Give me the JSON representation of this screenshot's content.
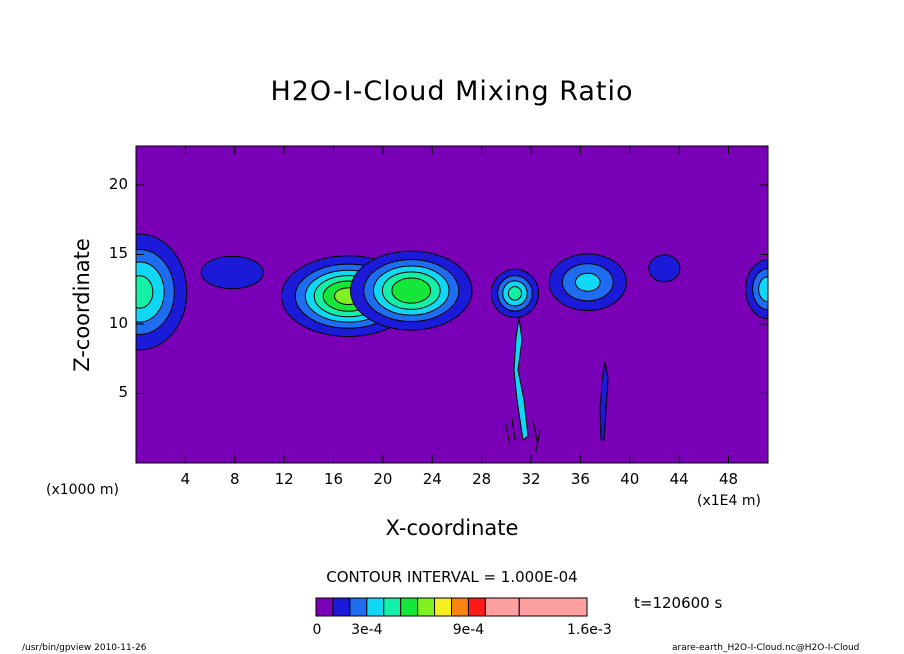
{
  "chart_data": {
    "type": "contour",
    "title": "H2O-I-Cloud Mixing Ratio",
    "xlabel": "X-coordinate",
    "ylabel": "Z-coordinate",
    "x_unit_note": "(x1E4 m)",
    "y_unit_note": "(x1000 m)",
    "x_ticks": [
      4,
      8,
      12,
      16,
      20,
      24,
      28,
      32,
      36,
      40,
      44,
      48
    ],
    "y_ticks": [
      5,
      10,
      15,
      20
    ],
    "xlim": [
      0,
      51.2
    ],
    "ylim": [
      0,
      22.8
    ],
    "contour_interval": "CONTOUR INTERVAL = 1.000E-04",
    "time_label": "t=120600 s",
    "colorbar_labels": [
      "0",
      "3e-4",
      "9e-4",
      "1.6e-3"
    ],
    "levels": [
      0,
      0.0001,
      0.0002,
      0.0003,
      0.0004,
      0.0005,
      0.0006,
      0.0007,
      0.0008,
      0.0009,
      0.001,
      0.0012,
      0.0016
    ],
    "colors": [
      "#7a00b8",
      "#1a1ad8",
      "#1e6cf0",
      "#10d8f4",
      "#14f0a8",
      "#14e63a",
      "#80f020",
      "#f4f020",
      "#fa8412",
      "#ff1a1a",
      "#ffa0a0"
    ],
    "cells": [
      {
        "x": 0.3,
        "z": 12.3,
        "sx": 2.2,
        "sz": 2.4,
        "peak": 0.00045
      },
      {
        "x": 7.8,
        "z": 13.7,
        "sx": 2.6,
        "sz": 1.2,
        "peak": 0.00016
      },
      {
        "x": 17.2,
        "z": 12.0,
        "sx": 2.8,
        "sz": 1.5,
        "peak": 0.00065
      },
      {
        "x": 22.3,
        "z": 12.4,
        "sx": 2.6,
        "sz": 1.5,
        "peak": 0.0006
      },
      {
        "x": 30.7,
        "z": 12.2,
        "sx": 1.1,
        "sz": 1.0,
        "peak": 0.00045
      },
      {
        "x": 36.6,
        "z": 13.0,
        "sx": 2.0,
        "sz": 1.3,
        "peak": 0.00034
      },
      {
        "x": 42.8,
        "z": 14.0,
        "sx": 1.3,
        "sz": 1.0,
        "peak": 0.00016
      },
      {
        "x": 51.2,
        "z": 12.5,
        "sx": 1.1,
        "sz": 1.3,
        "peak": 0.00038
      }
    ]
  },
  "footer": {
    "left": "/usr/bin/gpview  2010-11-26",
    "right": "arare-earth_H2O-I-Cloud.nc@H2O-I-Cloud"
  }
}
